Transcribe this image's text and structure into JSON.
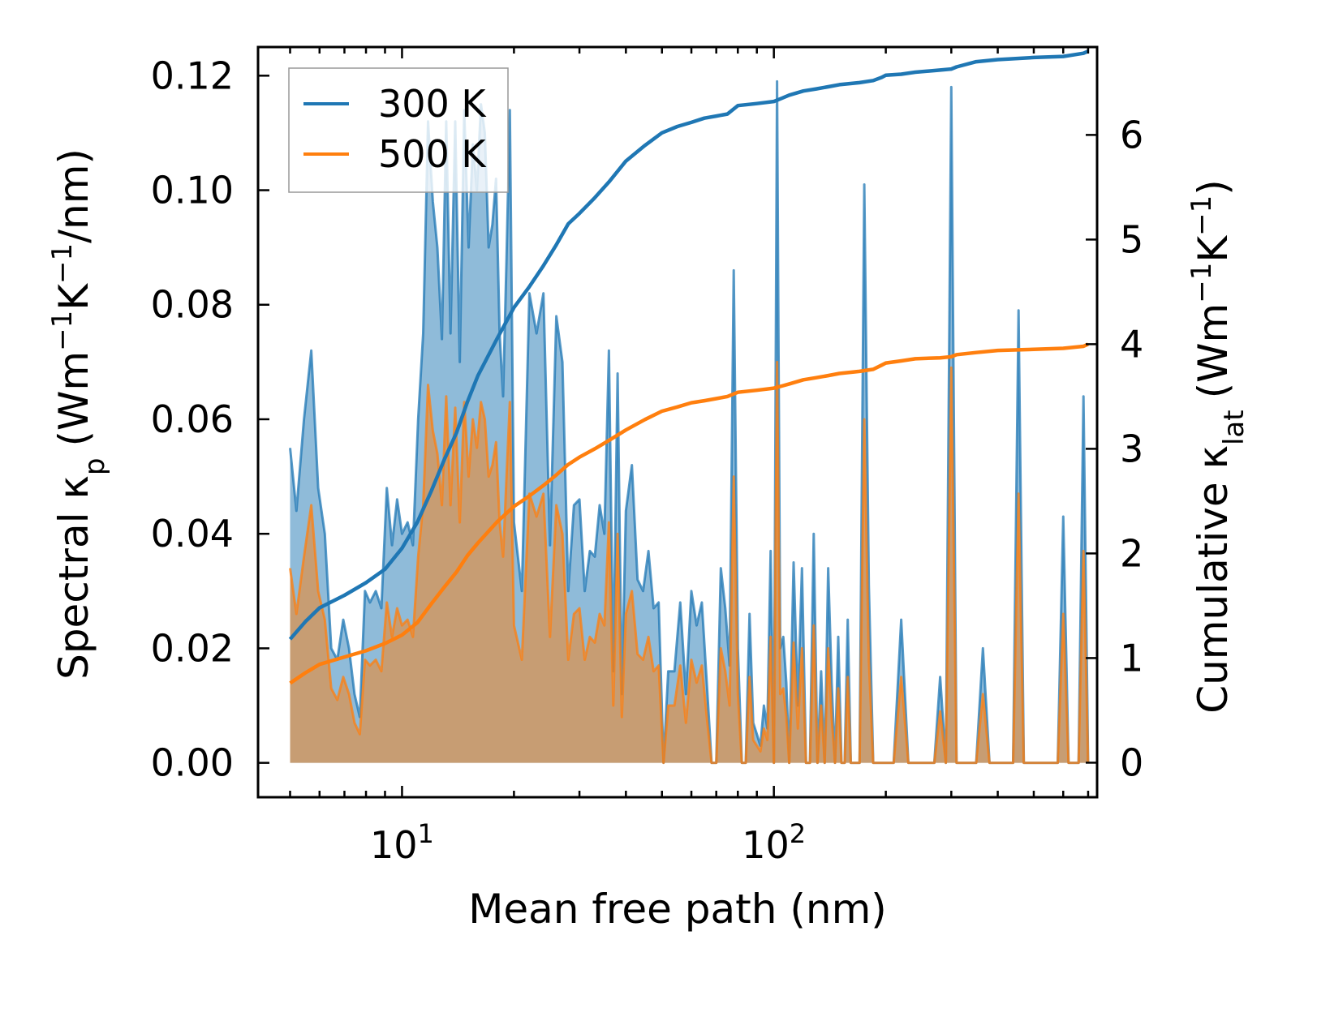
{
  "chart_data": {
    "type": "line",
    "xscale": "log",
    "xlim": [
      4.1,
      740
    ],
    "xlabel": "Mean free path (nm)",
    "xticks": [
      {
        "value": 10,
        "base": "10",
        "exp": "1"
      },
      {
        "value": 100,
        "base": "10",
        "exp": "2"
      }
    ],
    "left_axis": {
      "label_main": "Spectral κ",
      "label_sub": "p",
      "label_units": [
        "(Wm",
        "−1",
        "K",
        "−1",
        "/nm)"
      ],
      "ylim": [
        -0.006,
        0.125
      ],
      "ticks": [
        {
          "value": 0.0,
          "label": "0.00"
        },
        {
          "value": 0.02,
          "label": "0.02"
        },
        {
          "value": 0.04,
          "label": "0.04"
        },
        {
          "value": 0.06,
          "label": "0.06"
        },
        {
          "value": 0.08,
          "label": "0.08"
        },
        {
          "value": 0.1,
          "label": "0.10"
        },
        {
          "value": 0.12,
          "label": "0.12"
        }
      ]
    },
    "right_axis": {
      "label_main": "Cumulative κ",
      "label_sub": "lat",
      "label_units": [
        "(Wm",
        "−1",
        "K",
        "−1",
        ")"
      ],
      "ylim": [
        -0.33,
        6.84
      ],
      "ticks": [
        {
          "value": 0,
          "label": "0"
        },
        {
          "value": 1,
          "label": "1"
        },
        {
          "value": 2,
          "label": "2"
        },
        {
          "value": 3,
          "label": "3"
        },
        {
          "value": 4,
          "label": "4"
        },
        {
          "value": 5,
          "label": "5"
        },
        {
          "value": 6,
          "label": "6"
        }
      ]
    },
    "legend": {
      "position": "upper-left",
      "entries": [
        {
          "label": "300 K",
          "color": "#1f77b4"
        },
        {
          "label": "500 K",
          "color": "#ff7f0e"
        }
      ]
    },
    "series_spectral": [
      {
        "name": "300 K",
        "color": "#1f77b4",
        "x": [
          5.0,
          5.2,
          5.45,
          5.7,
          5.95,
          6.2,
          6.45,
          6.7,
          6.95,
          7.2,
          7.45,
          7.7,
          7.95,
          8.2,
          8.5,
          8.8,
          9.1,
          9.4,
          9.7,
          10.0,
          10.35,
          10.7,
          11.05,
          11.4,
          11.75,
          12.1,
          12.45,
          12.8,
          13.15,
          13.5,
          13.9,
          14.3,
          14.7,
          15.1,
          15.5,
          15.9,
          16.3,
          16.7,
          17.1,
          17.5,
          17.9,
          18.3,
          18.7,
          19.1,
          19.5,
          20.0,
          21.0,
          22.0,
          23.0,
          24.0,
          25.0,
          26.0,
          27.0,
          28.0,
          29.0,
          30.0,
          31.0,
          32.0,
          33.0,
          34.0,
          35.0,
          36.0,
          37.0,
          38.0,
          39.0,
          40.0,
          41.5,
          43.0,
          44.5,
          46.0,
          47.5,
          49.0,
          50.5,
          52.0,
          54.0,
          56.0,
          58.0,
          60.0,
          62.0,
          64.0,
          66.0,
          68.0,
          70.0,
          72.0,
          74.0,
          76.0,
          78.0,
          80.0,
          82.0,
          84.0,
          86.0,
          88.0,
          90.0,
          92.0,
          94.0,
          96.0,
          98.0,
          100.0,
          102.0,
          104.0,
          106.0,
          108.0,
          110.0,
          113.0,
          116.0,
          119.0,
          122.0,
          125.0,
          128.0,
          131.0,
          134.0,
          137.0,
          140.0,
          143.0,
          146.0,
          149.0,
          152.0,
          155.0,
          158.0,
          161.0,
          164.0,
          167.0,
          170.0,
          175.0,
          180.0,
          185.0,
          190.0,
          195.0,
          200.0,
          210.0,
          220.0,
          230.0,
          240.0,
          250.0,
          260.0,
          270.0,
          280.0,
          290.0,
          300.0,
          310.0,
          320.0,
          335.0,
          350.0,
          365.0,
          380.0,
          395.0,
          410.0,
          425.0,
          440.0,
          455.0,
          470.0,
          485.0,
          500.0,
          520.0,
          540.0,
          560.0,
          580.0,
          600.0,
          620.0,
          640.0,
          660.0,
          680.0,
          700.0
        ],
        "y": [
          0.055,
          0.044,
          0.06,
          0.072,
          0.048,
          0.04,
          0.02,
          0.018,
          0.025,
          0.02,
          0.012,
          0.008,
          0.03,
          0.028,
          0.03,
          0.027,
          0.048,
          0.038,
          0.046,
          0.04,
          0.042,
          0.038,
          0.06,
          0.075,
          0.112,
          0.098,
          0.09,
          0.074,
          0.112,
          0.075,
          0.112,
          0.07,
          0.114,
          0.09,
          0.108,
          0.1,
          0.115,
          0.11,
          0.09,
          0.094,
          0.102,
          0.075,
          0.064,
          0.088,
          0.114,
          0.042,
          0.03,
          0.082,
          0.075,
          0.082,
          0.038,
          0.078,
          0.07,
          0.03,
          0.045,
          0.046,
          0.03,
          0.037,
          0.036,
          0.045,
          0.04,
          0.072,
          0.016,
          0.068,
          0.012,
          0.044,
          0.052,
          0.032,
          0.03,
          0.037,
          0.027,
          0.028,
          0.0,
          0.016,
          0.016,
          0.028,
          0.012,
          0.03,
          0.024,
          0.028,
          0.014,
          0.0,
          0.0,
          0.034,
          0.027,
          0.017,
          0.086,
          0.02,
          0.0,
          0.0,
          0.026,
          0.007,
          0.005,
          0.003,
          0.01,
          0.006,
          0.037,
          0.0,
          0.119,
          0.02,
          0.022,
          0.014,
          0.0,
          0.035,
          0.01,
          0.034,
          0.0,
          0.0,
          0.04,
          0.0,
          0.016,
          0.0,
          0.034,
          0.014,
          0.0,
          0.022,
          0.0,
          0.0,
          0.025,
          0.0,
          0.0,
          0.0,
          0.0,
          0.101,
          0.031,
          0.0,
          0.0,
          0.0,
          0.0,
          0.0,
          0.025,
          0.0,
          0.0,
          0.0,
          0.0,
          0.0,
          0.015,
          0.0,
          0.118,
          0.0,
          0.0,
          0.0,
          0.0,
          0.02,
          0.0,
          0.0,
          0.0,
          0.0,
          0.0,
          0.079,
          0.0,
          0.0,
          0.0,
          0.0,
          0.0,
          0.0,
          0.0,
          0.043,
          0.0,
          0.0,
          0.0,
          0.064,
          0.0
        ]
      },
      {
        "name": "500 K",
        "color": "#ff7f0e",
        "x": [
          5.0,
          5.2,
          5.45,
          5.7,
          5.95,
          6.2,
          6.45,
          6.7,
          6.95,
          7.2,
          7.45,
          7.7,
          7.95,
          8.2,
          8.5,
          8.8,
          9.1,
          9.4,
          9.7,
          10.0,
          10.35,
          10.7,
          11.05,
          11.4,
          11.75,
          12.1,
          12.45,
          12.8,
          13.15,
          13.5,
          13.9,
          14.3,
          14.7,
          15.1,
          15.5,
          15.9,
          16.3,
          16.7,
          17.1,
          17.5,
          17.9,
          18.3,
          18.7,
          19.1,
          19.5,
          20.0,
          21.0,
          22.0,
          23.0,
          24.0,
          25.0,
          26.0,
          27.0,
          28.0,
          29.0,
          30.0,
          31.0,
          32.0,
          33.0,
          34.0,
          35.0,
          36.0,
          37.0,
          38.0,
          39.0,
          40.0,
          41.5,
          43.0,
          44.5,
          46.0,
          47.5,
          49.0,
          50.5,
          52.0,
          54.0,
          56.0,
          58.0,
          60.0,
          62.0,
          64.0,
          66.0,
          68.0,
          70.0,
          72.0,
          74.0,
          76.0,
          78.0,
          80.0,
          82.0,
          84.0,
          86.0,
          88.0,
          90.0,
          92.0,
          94.0,
          96.0,
          98.0,
          100.0,
          102.0,
          104.0,
          106.0,
          108.0,
          110.0,
          113.0,
          116.0,
          119.0,
          122.0,
          125.0,
          128.0,
          131.0,
          134.0,
          137.0,
          140.0,
          143.0,
          146.0,
          149.0,
          152.0,
          155.0,
          158.0,
          161.0,
          164.0,
          167.0,
          170.0,
          175.0,
          180.0,
          185.0,
          190.0,
          195.0,
          200.0,
          210.0,
          220.0,
          230.0,
          240.0,
          250.0,
          260.0,
          270.0,
          280.0,
          290.0,
          300.0,
          310.0,
          320.0,
          335.0,
          350.0,
          365.0,
          380.0,
          395.0,
          410.0,
          425.0,
          440.0,
          455.0,
          470.0,
          485.0,
          500.0,
          520.0,
          540.0,
          560.0,
          580.0,
          600.0,
          620.0,
          640.0,
          660.0,
          680.0,
          700.0
        ],
        "y": [
          0.034,
          0.026,
          0.036,
          0.045,
          0.03,
          0.025,
          0.013,
          0.011,
          0.015,
          0.012,
          0.007,
          0.005,
          0.018,
          0.017,
          0.018,
          0.016,
          0.028,
          0.022,
          0.027,
          0.024,
          0.025,
          0.022,
          0.036,
          0.045,
          0.066,
          0.058,
          0.054,
          0.045,
          0.064,
          0.045,
          0.062,
          0.042,
          0.063,
          0.05,
          0.06,
          0.055,
          0.063,
          0.06,
          0.05,
          0.052,
          0.056,
          0.042,
          0.036,
          0.05,
          0.063,
          0.024,
          0.018,
          0.047,
          0.043,
          0.047,
          0.022,
          0.045,
          0.04,
          0.018,
          0.026,
          0.027,
          0.018,
          0.022,
          0.021,
          0.026,
          0.024,
          0.042,
          0.01,
          0.04,
          0.008,
          0.026,
          0.03,
          0.019,
          0.018,
          0.022,
          0.016,
          0.017,
          0.0,
          0.01,
          0.01,
          0.017,
          0.007,
          0.018,
          0.014,
          0.017,
          0.008,
          0.0,
          0.0,
          0.02,
          0.016,
          0.01,
          0.05,
          0.012,
          0.0,
          0.0,
          0.015,
          0.004,
          0.003,
          0.002,
          0.006,
          0.004,
          0.022,
          0.0,
          0.07,
          0.012,
          0.013,
          0.008,
          0.0,
          0.021,
          0.006,
          0.02,
          0.0,
          0.0,
          0.024,
          0.0,
          0.01,
          0.0,
          0.02,
          0.008,
          0.0,
          0.013,
          0.0,
          0.0,
          0.015,
          0.0,
          0.0,
          0.0,
          0.0,
          0.06,
          0.018,
          0.0,
          0.0,
          0.0,
          0.0,
          0.0,
          0.015,
          0.0,
          0.0,
          0.0,
          0.0,
          0.0,
          0.009,
          0.0,
          0.069,
          0.0,
          0.0,
          0.0,
          0.0,
          0.012,
          0.0,
          0.0,
          0.0,
          0.0,
          0.0,
          0.047,
          0.0,
          0.0,
          0.0,
          0.0,
          0.0,
          0.0,
          0.0,
          0.026,
          0.0,
          0.0,
          0.0,
          0.037,
          0.0
        ]
      }
    ],
    "series_cumulative": [
      {
        "name": "300 K",
        "color": "#1f77b4",
        "x": [
          5.0,
          5.5,
          6.0,
          7.0,
          8.0,
          9.0,
          10.0,
          11.0,
          12.0,
          13.0,
          14.0,
          15.0,
          16.0,
          18.0,
          20.0,
          22.0,
          24.0,
          26.0,
          28.0,
          30.0,
          33.0,
          36.0,
          40.0,
          45.0,
          50.0,
          55.0,
          60.0,
          65.0,
          70.0,
          75.0,
          80.0,
          90.0,
          100.0,
          105.0,
          110.0,
          120.0,
          130.0,
          140.0,
          150.0,
          170.0,
          185.0,
          195.0,
          200.0,
          220.0,
          240.0,
          280.0,
          300.0,
          310.0,
          350.0,
          400.0,
          500.0,
          600.0,
          680.0,
          700.0
        ],
        "y": [
          1.18,
          1.35,
          1.48,
          1.6,
          1.72,
          1.85,
          2.05,
          2.3,
          2.6,
          2.9,
          3.15,
          3.45,
          3.7,
          4.05,
          4.35,
          4.55,
          4.75,
          4.95,
          5.15,
          5.25,
          5.4,
          5.55,
          5.75,
          5.9,
          6.02,
          6.08,
          6.12,
          6.16,
          6.18,
          6.2,
          6.28,
          6.3,
          6.32,
          6.35,
          6.38,
          6.42,
          6.44,
          6.46,
          6.48,
          6.5,
          6.52,
          6.55,
          6.57,
          6.58,
          6.6,
          6.62,
          6.63,
          6.65,
          6.7,
          6.72,
          6.74,
          6.75,
          6.78,
          6.8
        ]
      },
      {
        "name": "500 K",
        "color": "#ff7f0e",
        "x": [
          5.0,
          5.5,
          6.0,
          7.0,
          8.0,
          9.0,
          10.0,
          11.0,
          12.0,
          13.0,
          14.0,
          15.0,
          16.0,
          18.0,
          20.0,
          22.0,
          24.0,
          26.0,
          28.0,
          30.0,
          33.0,
          36.0,
          40.0,
          45.0,
          50.0,
          55.0,
          60.0,
          65.0,
          70.0,
          75.0,
          80.0,
          90.0,
          100.0,
          105.0,
          110.0,
          120.0,
          130.0,
          140.0,
          150.0,
          170.0,
          185.0,
          195.0,
          200.0,
          220.0,
          240.0,
          280.0,
          300.0,
          310.0,
          350.0,
          400.0,
          500.0,
          600.0,
          680.0,
          700.0
        ],
        "y": [
          0.76,
          0.86,
          0.94,
          1.01,
          1.07,
          1.14,
          1.22,
          1.34,
          1.52,
          1.68,
          1.82,
          1.98,
          2.1,
          2.3,
          2.45,
          2.55,
          2.65,
          2.75,
          2.85,
          2.92,
          3.0,
          3.08,
          3.18,
          3.28,
          3.36,
          3.4,
          3.44,
          3.46,
          3.48,
          3.5,
          3.54,
          3.56,
          3.58,
          3.6,
          3.62,
          3.66,
          3.68,
          3.7,
          3.72,
          3.74,
          3.76,
          3.8,
          3.82,
          3.84,
          3.86,
          3.87,
          3.88,
          3.9,
          3.92,
          3.94,
          3.95,
          3.96,
          3.98,
          4.0
        ]
      }
    ]
  }
}
